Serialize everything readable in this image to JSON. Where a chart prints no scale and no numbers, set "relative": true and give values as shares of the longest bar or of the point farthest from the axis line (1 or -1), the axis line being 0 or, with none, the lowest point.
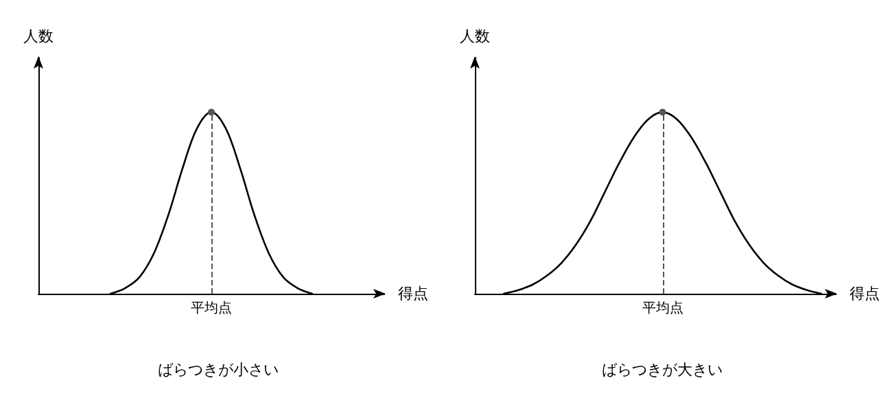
{
  "chart_data": [
    {
      "type": "line",
      "title": "ばらつきが小さい",
      "xlabel": "得点",
      "ylabel": "人数",
      "relative": true,
      "grid": false,
      "marker": "none",
      "line_style": "solid",
      "categories": [
        null,
        null,
        null,
        null,
        null,
        null,
        null,
        null,
        null,
        null,
        null,
        null,
        null,
        null,
        null,
        null,
        null,
        null,
        null,
        null,
        null,
        null,
        null,
        null,
        null
      ],
      "series": [
        {
          "color": "#000000",
          "values": [
            null,
            null,
            null,
            null,
            null,
            0,
            0.03,
            0.09,
            0.22,
            0.43,
            0.69,
            0.91,
            1,
            0.91,
            0.69,
            0.43,
            0.22,
            0.09,
            0.03,
            0,
            null,
            null,
            null,
            null,
            null
          ]
        }
      ],
      "annotations": [
        "平均点"
      ]
    },
    {
      "type": "line",
      "title": "ばらつきが大きい",
      "xlabel": "得点",
      "ylabel": "人数",
      "relative": true,
      "grid": false,
      "marker": "none",
      "line_style": "solid",
      "categories": [
        null,
        null,
        null,
        null,
        null,
        null,
        null,
        null,
        null,
        null,
        null,
        null,
        null,
        null,
        null,
        null,
        null,
        null,
        null,
        null,
        null,
        null,
        null,
        null,
        null,
        null
      ],
      "series": [
        {
          "color": "#000000",
          "values": [
            null,
            null,
            0,
            0.02,
            0.05,
            0.1,
            0.17,
            0.27,
            0.4,
            0.56,
            0.72,
            0.86,
            0.96,
            1,
            0.96,
            0.86,
            0.72,
            0.56,
            0.4,
            0.27,
            0.17,
            0.1,
            0.05,
            0.02,
            0,
            null
          ]
        }
      ],
      "annotations": [
        "平均点"
      ]
    }
  ]
}
